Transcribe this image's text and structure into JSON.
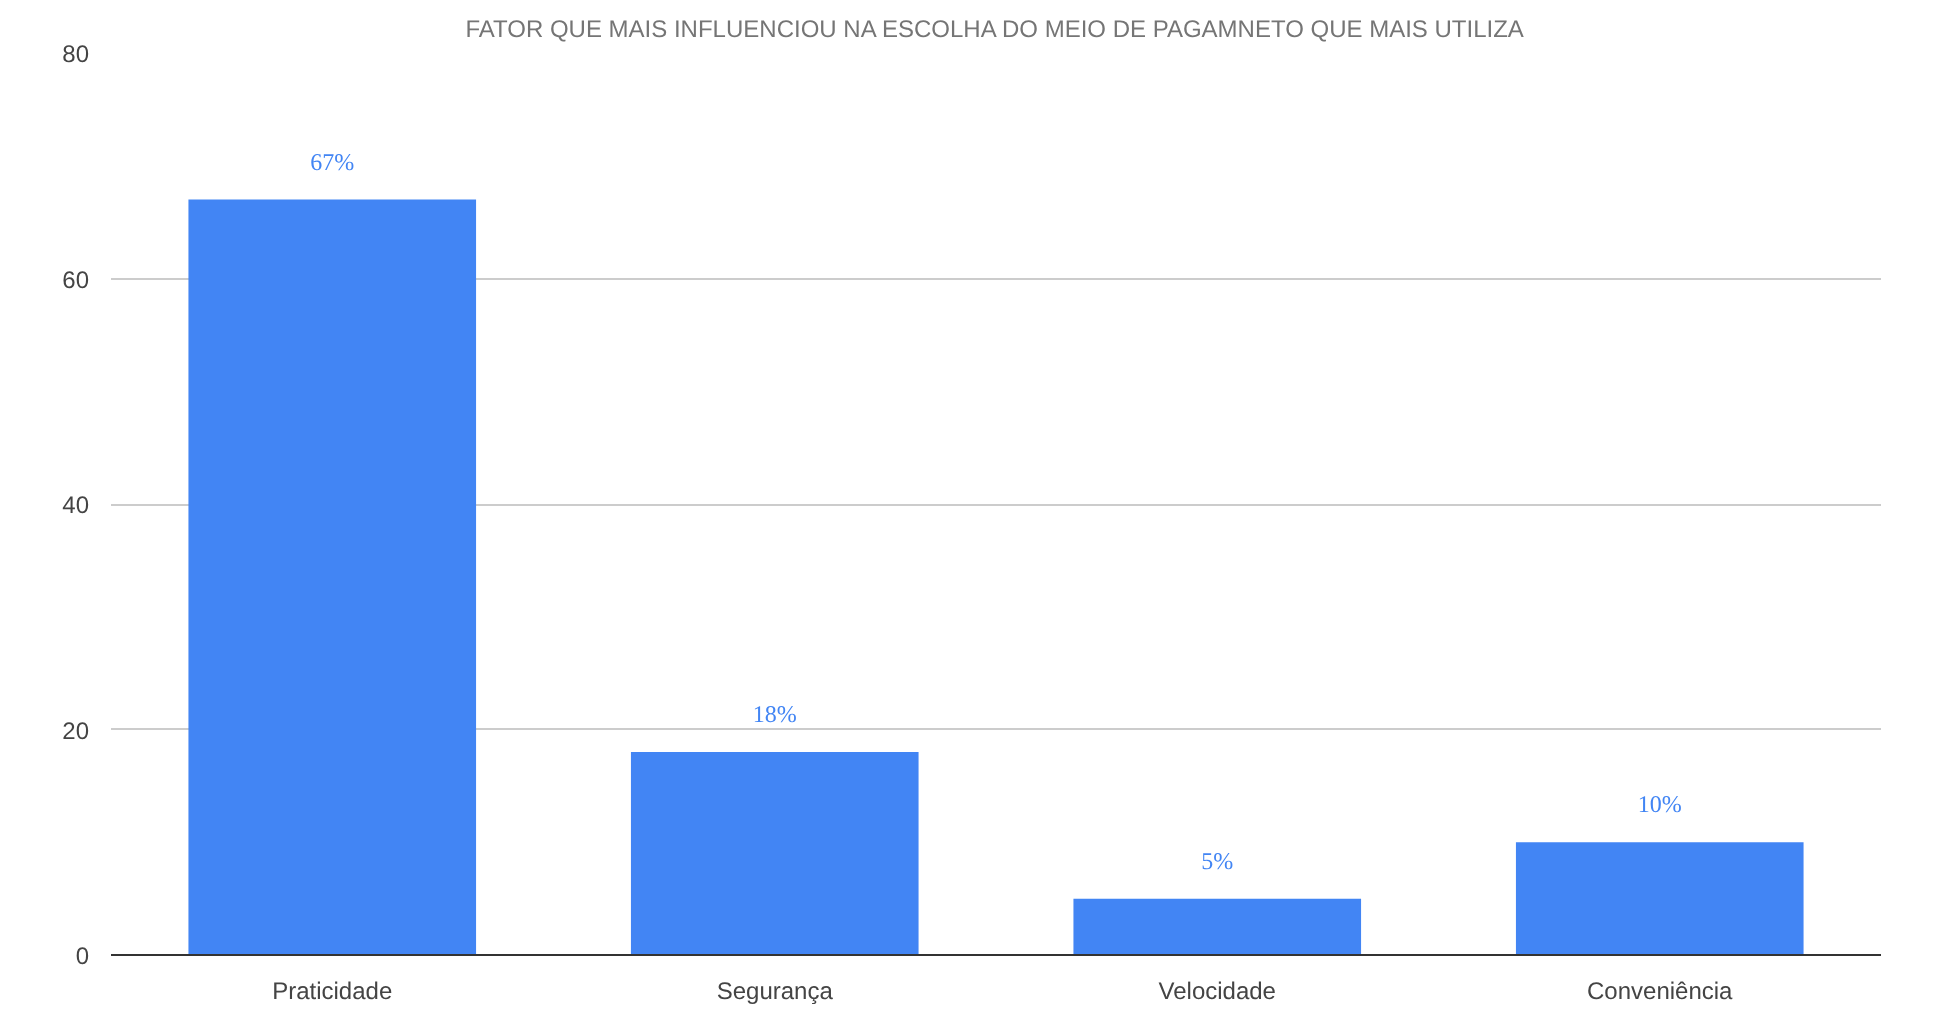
{
  "chart_data": {
    "type": "bar",
    "title": "FATOR QUE MAIS INFLUENCIOU NA ESCOLHA DO MEIO DE PAGAMNETO QUE MAIS UTILIZA",
    "categories": [
      "Praticidade",
      "Segurança",
      "Velocidade",
      "Conveniência"
    ],
    "values": [
      67,
      18,
      5,
      10
    ],
    "value_labels": [
      "67%",
      "18%",
      "5%",
      "10%"
    ],
    "color": "#4285f4",
    "ylim": [
      0,
      80
    ],
    "yticks": [
      0,
      20,
      40,
      60,
      80
    ],
    "grid": "y"
  }
}
